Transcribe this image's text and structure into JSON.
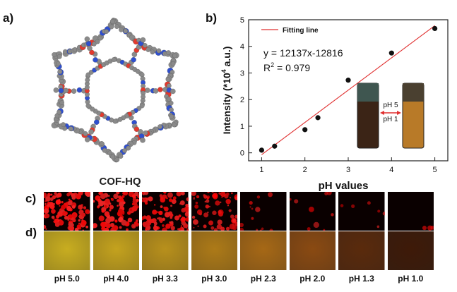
{
  "panels": {
    "a": "a)",
    "b": "b)",
    "c": "c)",
    "d": "d)"
  },
  "structure": {
    "caption": "COF-HQ",
    "colors": {
      "carbon": "#8a8a8a",
      "oxygen": "#e23a2e",
      "nitrogen": "#2f4fcf"
    }
  },
  "chart_data": {
    "type": "scatter",
    "xlabel": "pH values",
    "ylabel_main": "Intensity (*10",
    "ylabel_sup": "4",
    "ylabel_tail": " a.u.)",
    "xlim": [
      0.7,
      5.3
    ],
    "ylim": [
      -0.3,
      5
    ],
    "xticks": [
      1,
      2,
      3,
      4,
      5
    ],
    "yticks": [
      0,
      1,
      2,
      3,
      4,
      5
    ],
    "points": [
      {
        "x": 1.0,
        "y": 0.1
      },
      {
        "x": 1.3,
        "y": 0.25
      },
      {
        "x": 2.0,
        "y": 0.87
      },
      {
        "x": 2.3,
        "y": 1.32
      },
      {
        "x": 3.0,
        "y": 2.73
      },
      {
        "x": 4.0,
        "y": 3.75
      },
      {
        "x": 5.0,
        "y": 4.67
      }
    ],
    "fit": {
      "x": [
        1.0,
        5.0
      ],
      "y": [
        -0.07,
        4.78
      ],
      "color": "#e03030"
    },
    "legend": "Fitting line",
    "equation": "y = 12137x-12816",
    "r2_prefix": "R",
    "r2_sup": "2",
    "r2_tail": " = 0.979",
    "inset": {
      "top_label": "pH 5",
      "bottom_label": "pH 1"
    }
  },
  "ph_series": [
    {
      "label": "pH 5.0",
      "red_intensity": 1.0,
      "solution": "#c8ad20"
    },
    {
      "label": "pH 4.0",
      "red_intensity": 0.95,
      "solution": "#c4a21e"
    },
    {
      "label": "pH 3.3",
      "red_intensity": 0.82,
      "solution": "#b8901c"
    },
    {
      "label": "pH 3.0",
      "red_intensity": 0.55,
      "solution": "#ad7a18"
    },
    {
      "label": "pH 2.3",
      "red_intensity": 0.12,
      "solution": "#a66816"
    },
    {
      "label": "pH 2.0",
      "red_intensity": 0.08,
      "solution": "#8a4a12"
    },
    {
      "label": "pH 1.3",
      "red_intensity": 0.05,
      "solution": "#5a2a0c"
    },
    {
      "label": "pH 1.0",
      "red_intensity": 0.03,
      "solution": "#3e1a08"
    }
  ]
}
